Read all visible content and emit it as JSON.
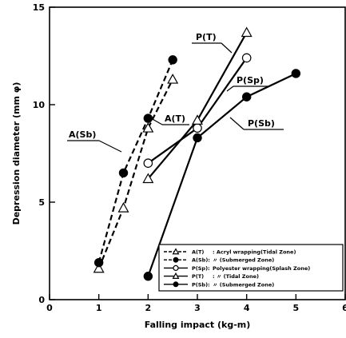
{
  "chart_data": {
    "type": "line",
    "title": "",
    "xlabel": "Falling impact (kg-m)",
    "ylabel": "Depression diameter (mm φ)",
    "xlim": [
      0,
      6
    ],
    "ylim": [
      0,
      15
    ],
    "x_ticks": [
      "0",
      "1",
      "2",
      "3",
      "4",
      "5",
      "6"
    ],
    "y_ticks": [
      "0",
      "5",
      "10",
      "15"
    ],
    "grid": false,
    "legend_position": "bottom-right",
    "series": [
      {
        "key": "AT",
        "name": "A(T)",
        "label": "A(T)",
        "legend_code": "A(T)",
        "legend_desc": ": Acryl wrapping(Tidal Zone)",
        "line": "dashed",
        "marker": "triangle-open",
        "x": [
          1.0,
          1.5,
          2.0,
          2.5
        ],
        "y": [
          1.6,
          4.7,
          8.8,
          11.3
        ]
      },
      {
        "key": "ASb",
        "name": "A(Sb)",
        "label": "A(Sb)",
        "legend_code": "A(Sb):",
        "legend_desc": "〃          (Submerged Zone)",
        "line": "dashed",
        "marker": "circle-filled",
        "x": [
          1.0,
          1.5,
          2.0,
          2.5
        ],
        "y": [
          1.9,
          6.5,
          9.3,
          12.3
        ]
      },
      {
        "key": "PSp",
        "name": "P(Sp)",
        "label": "P(Sp)",
        "legend_code": "P(Sp):",
        "legend_desc": "Polyester wrapping(Splash Zone)",
        "line": "solid",
        "marker": "circle-open",
        "x": [
          2.0,
          3.0,
          4.0
        ],
        "y": [
          7.0,
          8.8,
          12.4
        ]
      },
      {
        "key": "PT",
        "name": "P(T)",
        "label": "P(T)",
        "legend_code": "P(T)",
        "legend_desc": ":          〃          (Tidal Zone)",
        "line": "solid",
        "marker": "triangle-open",
        "x": [
          2.0,
          3.0,
          4.0
        ],
        "y": [
          6.2,
          9.2,
          13.7
        ]
      },
      {
        "key": "PSb",
        "name": "P(Sb)",
        "label": "P(Sb)",
        "legend_code": "P(Sb):",
        "legend_desc": "〃          (Submerged Zone)",
        "line": "solid",
        "marker": "circle-filled",
        "x": [
          2.0,
          3.0,
          4.0,
          5.0
        ],
        "y": [
          1.2,
          8.3,
          10.4,
          11.6
        ]
      }
    ]
  }
}
